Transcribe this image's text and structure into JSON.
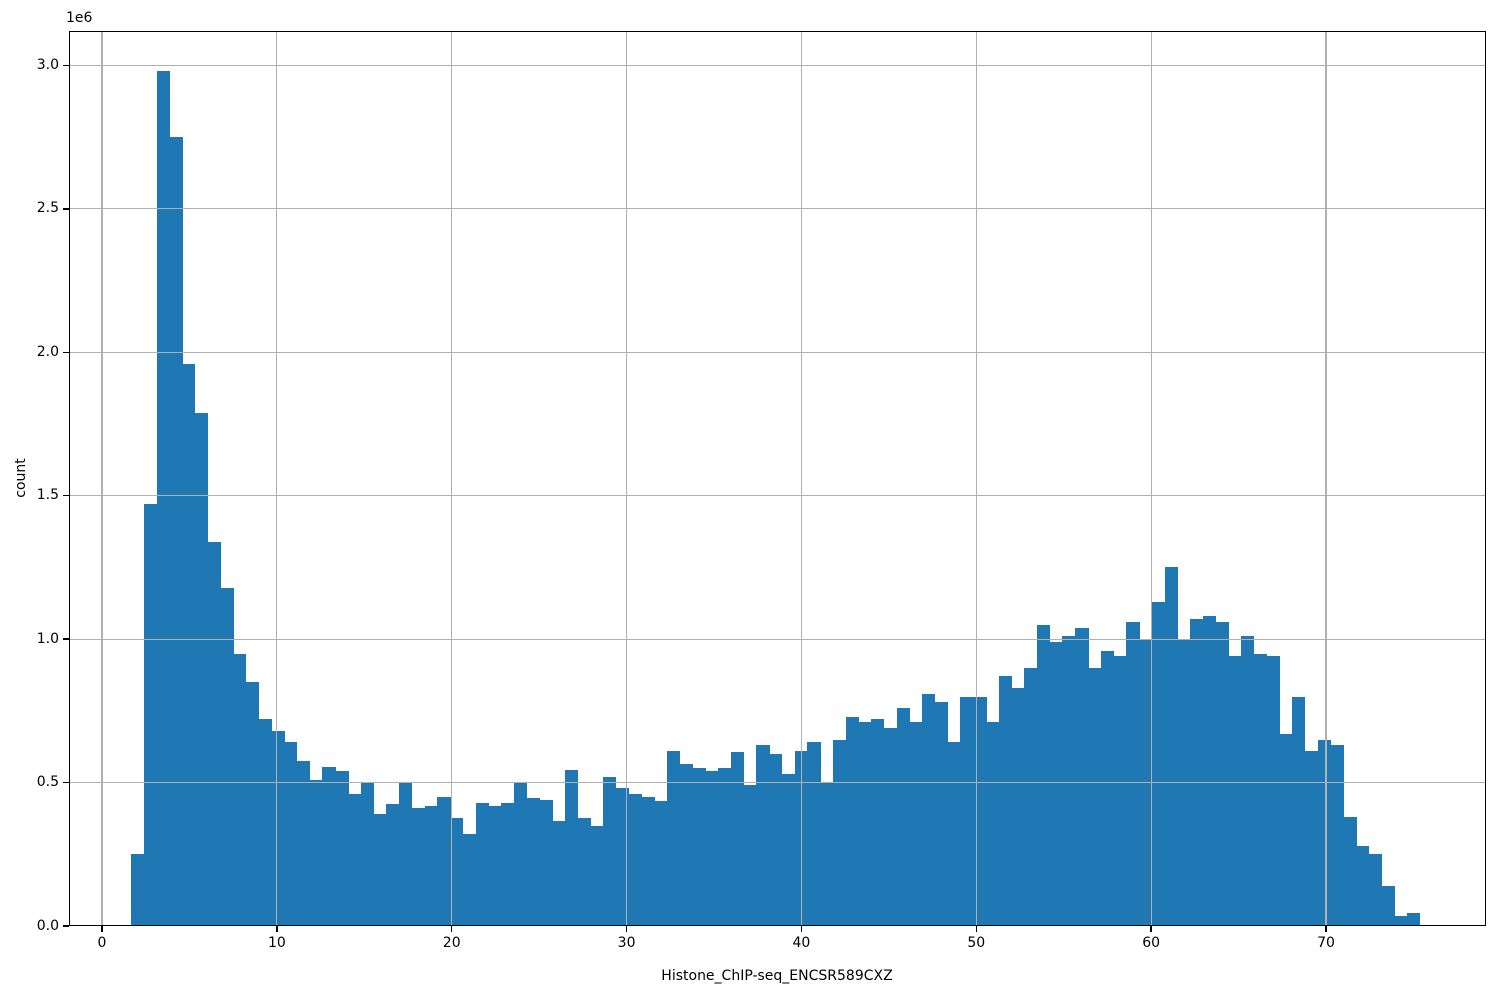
{
  "chart_data": {
    "type": "bar",
    "subtype": "histogram",
    "title": "",
    "xlabel": "Histone_ChIP-seq_ENCSR589CXZ",
    "ylabel": "count",
    "y_offset_multiplier_label": "1e6",
    "x_tick_labels": [
      "0",
      "10",
      "20",
      "30",
      "40",
      "50",
      "60",
      "70"
    ],
    "y_tick_labels": [
      "0.0",
      "0.5",
      "1.0",
      "1.5",
      "2.0",
      "2.5",
      "3.0"
    ],
    "grid": true,
    "grid_over_bars": true,
    "legend_position": "none",
    "bar_color": "#1f77b4",
    "grid_color": "#b0b0b0",
    "spine_color": "#000000",
    "xlim": [
      -1.9,
      79.2
    ],
    "ylim_in_millions": [
      0,
      3.12
    ],
    "bins": {
      "start": 1.66,
      "width": 0.7297,
      "count": 101
    },
    "counts_in_millions": [
      0.25,
      1.47,
      2.98,
      2.75,
      1.96,
      1.79,
      1.34,
      1.18,
      0.95,
      0.85,
      0.72,
      0.68,
      0.64,
      0.575,
      0.51,
      0.555,
      0.54,
      0.46,
      0.5,
      0.39,
      0.425,
      0.5,
      0.41,
      0.42,
      0.45,
      0.375,
      0.32,
      0.43,
      0.42,
      0.43,
      0.5,
      0.445,
      0.44,
      0.365,
      0.545,
      0.375,
      0.35,
      0.52,
      0.48,
      0.46,
      0.45,
      0.435,
      0.61,
      0.565,
      0.55,
      0.54,
      0.55,
      0.605,
      0.49,
      0.63,
      0.6,
      0.53,
      0.61,
      0.64,
      0.5,
      0.65,
      0.73,
      0.71,
      0.72,
      0.69,
      0.76,
      0.71,
      0.81,
      0.78,
      0.64,
      0.8,
      0.8,
      0.71,
      0.87,
      0.83,
      0.9,
      1.05,
      0.99,
      1.01,
      1.04,
      0.9,
      0.96,
      0.94,
      1.06,
      1.0,
      1.13,
      1.25,
      1.0,
      1.07,
      1.08,
      1.06,
      0.94,
      1.01,
      0.95,
      0.94,
      0.67,
      0.8,
      0.61,
      0.65,
      0.63,
      0.38,
      0.28,
      0.25,
      0.14,
      0.035,
      0.045
    ]
  }
}
